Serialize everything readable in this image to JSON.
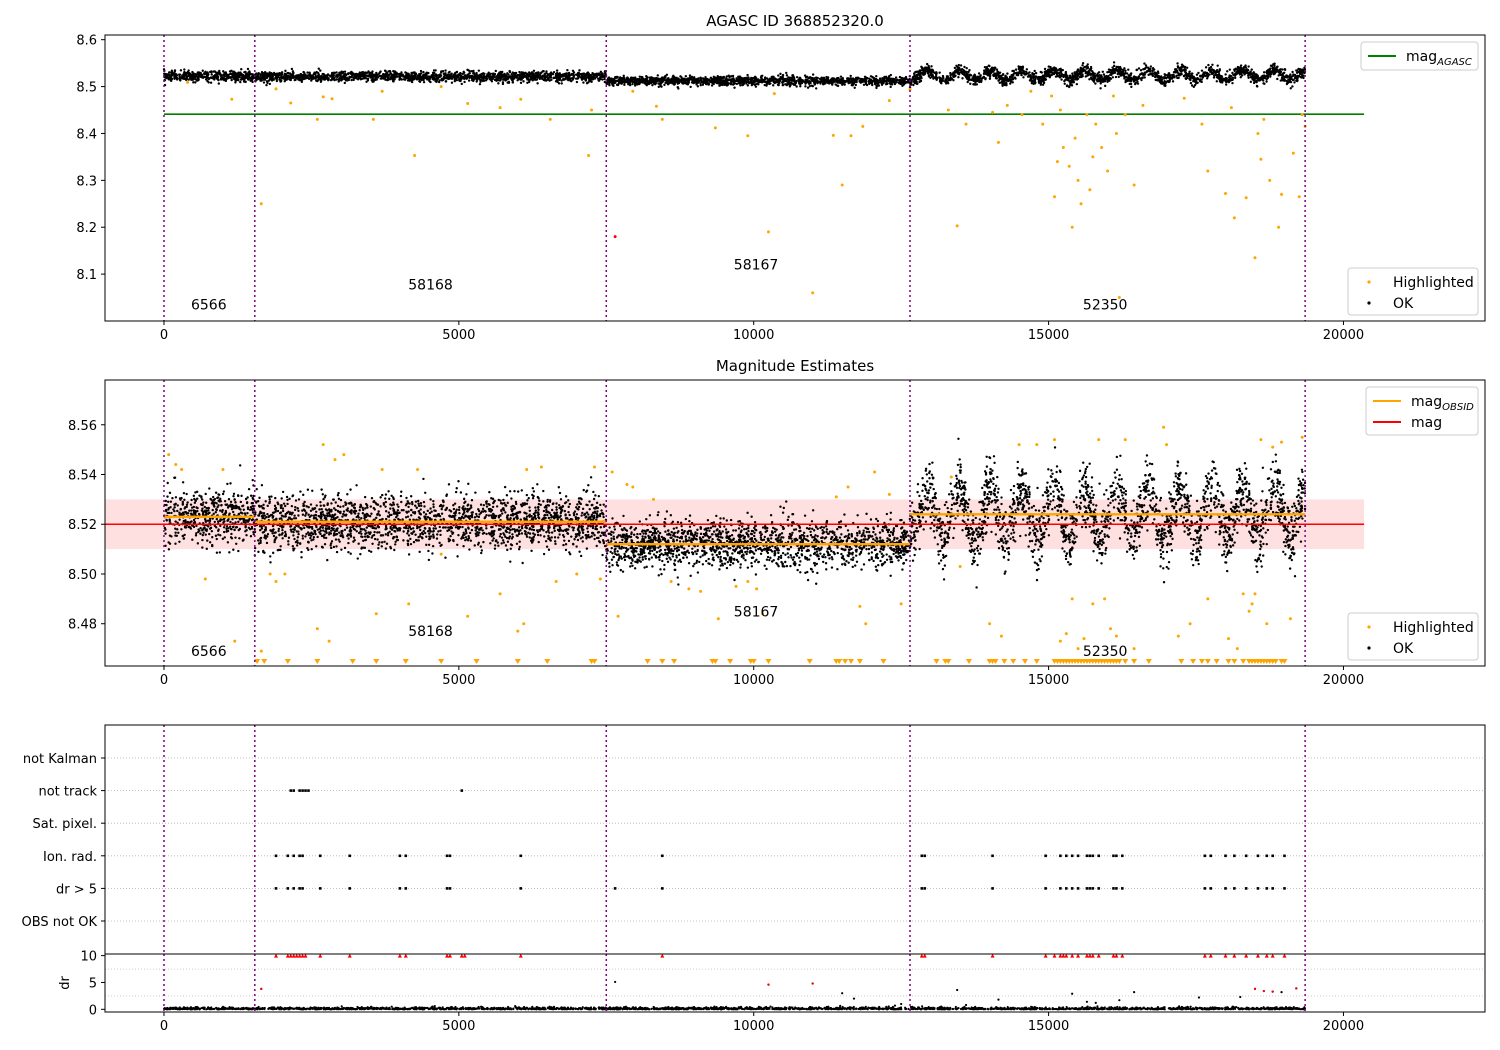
{
  "chart_data": [
    {
      "type": "scatter",
      "title": "AGASC ID 368852320.0",
      "xlim": [
        -1000,
        22400
      ],
      "ylim": [
        8.0,
        8.61
      ],
      "xticks": [
        0,
        5000,
        10000,
        15000,
        20000
      ],
      "yticks": [
        8.1,
        8.2,
        8.3,
        8.4,
        8.5,
        8.6
      ],
      "ytick_labels": [
        "8.1",
        "8.2",
        "8.3",
        "8.4",
        "8.5",
        "8.6"
      ],
      "obsid_boundaries": [
        0,
        1540,
        7500,
        12650,
        19350
      ],
      "obsid_labels": [
        {
          "text": "6566",
          "x": 760,
          "y": 8.025
        },
        {
          "text": "58168",
          "x": 4520,
          "y": 8.067
        },
        {
          "text": "58167",
          "x": 10040,
          "y": 8.11
        },
        {
          "text": "52350",
          "x": 15960,
          "y": 8.025
        }
      ],
      "mag_agasc": {
        "value": 8.441,
        "x_range": [
          0,
          20350
        ]
      },
      "ok_bands": [
        {
          "x0": 0,
          "x1": 1540,
          "mean": 8.522,
          "spread": 0.009,
          "osc": 0.0
        },
        {
          "x0": 1540,
          "x1": 7500,
          "mean": 8.521,
          "spread": 0.009,
          "osc": 0.0
        },
        {
          "x0": 7500,
          "x1": 12650,
          "mean": 8.512,
          "spread": 0.008,
          "osc": 0.0
        },
        {
          "x0": 12650,
          "x1": 19350,
          "mean": 8.524,
          "spread": 0.01,
          "osc": 0.012
        }
      ],
      "highlighted_points": [
        [
          400,
          8.509
        ],
        [
          1150,
          8.473
        ],
        [
          1650,
          8.25
        ],
        [
          1900,
          8.495
        ],
        [
          2150,
          8.465
        ],
        [
          2600,
          8.43
        ],
        [
          2700,
          8.478
        ],
        [
          2850,
          8.474
        ],
        [
          3550,
          8.43
        ],
        [
          3700,
          8.49
        ],
        [
          4250,
          8.353
        ],
        [
          4700,
          8.5
        ],
        [
          5150,
          8.464
        ],
        [
          5700,
          8.455
        ],
        [
          6050,
          8.473
        ],
        [
          6550,
          8.43
        ],
        [
          7200,
          8.353
        ],
        [
          7250,
          8.45
        ],
        [
          7950,
          8.49
        ],
        [
          8350,
          8.458
        ],
        [
          8450,
          8.43
        ],
        [
          9350,
          8.412
        ],
        [
          9900,
          8.395
        ],
        [
          10250,
          8.19
        ],
        [
          10350,
          8.485
        ],
        [
          11000,
          8.06
        ],
        [
          11350,
          8.396
        ],
        [
          11500,
          8.29
        ],
        [
          11650,
          8.395
        ],
        [
          11850,
          8.415
        ],
        [
          12300,
          8.47
        ],
        [
          13300,
          8.45
        ],
        [
          13450,
          8.203
        ],
        [
          13600,
          8.42
        ],
        [
          14050,
          8.445
        ],
        [
          14150,
          8.381
        ],
        [
          14300,
          8.46
        ],
        [
          14550,
          8.44
        ],
        [
          14900,
          8.42
        ],
        [
          15100,
          8.265
        ],
        [
          15150,
          8.34
        ],
        [
          15200,
          8.45
        ],
        [
          15250,
          8.37
        ],
        [
          15350,
          8.33
        ],
        [
          15400,
          8.2
        ],
        [
          15450,
          8.39
        ],
        [
          15500,
          8.3
        ],
        [
          15550,
          8.25
        ],
        [
          15650,
          8.44
        ],
        [
          15700,
          8.28
        ],
        [
          15750,
          8.35
        ],
        [
          15800,
          8.42
        ],
        [
          15900,
          8.37
        ],
        [
          16000,
          8.32
        ],
        [
          16100,
          8.48
        ],
        [
          16150,
          8.4
        ],
        [
          16200,
          8.05
        ],
        [
          16300,
          8.44
        ],
        [
          16450,
          8.29
        ],
        [
          16600,
          8.46
        ],
        [
          17300,
          8.475
        ],
        [
          17600,
          8.42
        ],
        [
          17700,
          8.32
        ],
        [
          18000,
          8.272
        ],
        [
          18100,
          8.455
        ],
        [
          18150,
          8.22
        ],
        [
          18350,
          8.263
        ],
        [
          18500,
          8.135
        ],
        [
          18600,
          8.345
        ],
        [
          18750,
          8.3
        ],
        [
          18900,
          8.2
        ],
        [
          18950,
          8.27
        ],
        [
          19150,
          8.358
        ],
        [
          19250,
          8.265
        ],
        [
          19300,
          8.44
        ],
        [
          19350,
          8.415
        ],
        [
          18550,
          8.4
        ],
        [
          18650,
          8.43
        ],
        [
          14700,
          8.49
        ],
        [
          15050,
          8.48
        ],
        [
          12650,
          8.494
        ]
      ],
      "ok_special_points": [
        [
          7650,
          8.18
        ]
      ],
      "legends": [
        {
          "entries": [
            {
              "label": "mag",
              "subscript": "AGASC",
              "color": "#008000",
              "kind": "line"
            }
          ],
          "loc": "upper right"
        },
        {
          "entries": [
            {
              "label": "Highlighted",
              "color": "#FFA500",
              "kind": "dot"
            },
            {
              "label": "OK",
              "color": "#000000",
              "kind": "dot"
            }
          ],
          "loc": "lower right"
        }
      ]
    },
    {
      "type": "scatter",
      "title": "Magnitude Estimates",
      "xlim": [
        -1000,
        22400
      ],
      "ylim": [
        8.463,
        8.578
      ],
      "xticks": [
        0,
        5000,
        10000,
        15000,
        20000
      ],
      "yticks": [
        8.48,
        8.5,
        8.52,
        8.54,
        8.56
      ],
      "ytick_labels": [
        "8.48",
        "8.50",
        "8.52",
        "8.54",
        "8.56"
      ],
      "obsid_boundaries": [
        0,
        1540,
        7500,
        12650,
        19350
      ],
      "obsid_labels": [
        {
          "text": "6566",
          "x": 760,
          "y": 8.467
        },
        {
          "text": "58168",
          "x": 4520,
          "y": 8.475
        },
        {
          "text": "58167",
          "x": 10040,
          "y": 8.483
        },
        {
          "text": "52350",
          "x": 15960,
          "y": 8.467
        }
      ],
      "mag": {
        "value": 8.52,
        "band": [
          8.51,
          8.53
        ],
        "x_range": [
          -1000,
          20350
        ]
      },
      "mag_obsid": [
        {
          "x0": 0,
          "x1": 1540,
          "value": 8.523
        },
        {
          "x0": 1540,
          "x1": 7500,
          "value": 8.521
        },
        {
          "x0": 7500,
          "x1": 12650,
          "value": 8.512
        },
        {
          "x0": 12650,
          "x1": 19350,
          "value": 8.524
        }
      ],
      "ok_bands": [
        {
          "x0": 0,
          "x1": 1540,
          "mean": 8.523,
          "spread": 0.009,
          "osc": 0.0
        },
        {
          "x0": 1540,
          "x1": 7500,
          "mean": 8.521,
          "spread": 0.009,
          "osc": 0.0
        },
        {
          "x0": 7500,
          "x1": 12650,
          "mean": 8.512,
          "spread": 0.008,
          "osc": 0.0
        },
        {
          "x0": 12650,
          "x1": 19350,
          "mean": 8.524,
          "spread": 0.01,
          "osc": 0.012
        }
      ],
      "highlighted_points": [
        [
          80,
          8.548
        ],
        [
          200,
          8.544
        ],
        [
          300,
          8.542
        ],
        [
          700,
          8.498
        ],
        [
          1000,
          8.542
        ],
        [
          1200,
          8.473
        ],
        [
          1650,
          8.469
        ],
        [
          1800,
          8.5
        ],
        [
          1900,
          8.497
        ],
        [
          2050,
          8.5
        ],
        [
          2600,
          8.478
        ],
        [
          2700,
          8.552
        ],
        [
          2800,
          8.473
        ],
        [
          2900,
          8.546
        ],
        [
          3050,
          8.548
        ],
        [
          3600,
          8.484
        ],
        [
          3700,
          8.542
        ],
        [
          4150,
          8.488
        ],
        [
          4300,
          8.542
        ],
        [
          4700,
          8.508
        ],
        [
          5150,
          8.483
        ],
        [
          5700,
          8.492
        ],
        [
          6000,
          8.477
        ],
        [
          6100,
          8.48
        ],
        [
          6150,
          8.542
        ],
        [
          6400,
          8.543
        ],
        [
          6650,
          8.497
        ],
        [
          7000,
          8.5
        ],
        [
          7300,
          8.543
        ],
        [
          7400,
          8.498
        ],
        [
          7600,
          8.541
        ],
        [
          7700,
          8.483
        ],
        [
          7850,
          8.536
        ],
        [
          7950,
          8.535
        ],
        [
          8300,
          8.53
        ],
        [
          8600,
          8.497
        ],
        [
          8900,
          8.494
        ],
        [
          9100,
          8.493
        ],
        [
          9400,
          8.482
        ],
        [
          9700,
          8.495
        ],
        [
          9900,
          8.497
        ],
        [
          10050,
          8.494
        ],
        [
          10150,
          8.484
        ],
        [
          11400,
          8.531
        ],
        [
          11600,
          8.535
        ],
        [
          11800,
          8.487
        ],
        [
          11900,
          8.48
        ],
        [
          12050,
          8.541
        ],
        [
          12300,
          8.532
        ],
        [
          12500,
          8.488
        ],
        [
          13350,
          8.539
        ],
        [
          13500,
          8.503
        ],
        [
          14000,
          8.48
        ],
        [
          14200,
          8.475
        ],
        [
          14500,
          8.552
        ],
        [
          14800,
          8.552
        ],
        [
          15100,
          8.554
        ],
        [
          15200,
          8.473
        ],
        [
          15300,
          8.476
        ],
        [
          15400,
          8.49
        ],
        [
          15500,
          8.47
        ],
        [
          15600,
          8.474
        ],
        [
          15750,
          8.488
        ],
        [
          15850,
          8.554
        ],
        [
          15950,
          8.49
        ],
        [
          16050,
          8.478
        ],
        [
          16150,
          8.475
        ],
        [
          16300,
          8.554
        ],
        [
          16450,
          8.47
        ],
        [
          16950,
          8.559
        ],
        [
          17000,
          8.552
        ],
        [
          17200,
          8.475
        ],
        [
          17400,
          8.48
        ],
        [
          17700,
          8.49
        ],
        [
          18050,
          8.474
        ],
        [
          18200,
          8.47
        ],
        [
          18300,
          8.492
        ],
        [
          18400,
          8.485
        ],
        [
          18450,
          8.488
        ],
        [
          18500,
          8.492
        ],
        [
          18600,
          8.554
        ],
        [
          18700,
          8.48
        ],
        [
          18800,
          8.551
        ],
        [
          18950,
          8.553
        ],
        [
          19100,
          8.482
        ],
        [
          19300,
          8.555
        ]
      ],
      "lower_limit_markers": [
        1580,
        1700,
        2100,
        2600,
        3200,
        3600,
        4100,
        4700,
        5300,
        6000,
        6500,
        7250,
        7300,
        8200,
        8450,
        8650,
        9300,
        9350,
        9600,
        9950,
        10000,
        10250,
        10950,
        11400,
        11450,
        11550,
        11650,
        11800,
        12200,
        13100,
        13250,
        13300,
        13650,
        14000,
        14050,
        14100,
        14250,
        14400,
        14600,
        14800,
        15100,
        15150,
        15200,
        15250,
        15300,
        15350,
        15400,
        15450,
        15500,
        15550,
        15600,
        15650,
        15700,
        15750,
        15800,
        15850,
        15900,
        15950,
        16000,
        16050,
        16100,
        16150,
        16200,
        16300,
        16450,
        16700,
        17250,
        17450,
        17600,
        17700,
        17850,
        18050,
        18150,
        18300,
        18400,
        18450,
        18500,
        18550,
        18600,
        18650,
        18700,
        18750,
        18800,
        18850,
        18950,
        19000
      ],
      "legends": [
        {
          "entries": [
            {
              "label": "mag",
              "subscript": "OBSID",
              "color": "#FFA500",
              "kind": "line"
            },
            {
              "label": "mag",
              "subscript": "",
              "color": "#FF0000",
              "kind": "line"
            }
          ],
          "loc": "upper right"
        },
        {
          "entries": [
            {
              "label": "Highlighted",
              "color": "#FFA500",
              "kind": "dot"
            },
            {
              "label": "OK",
              "color": "#000000",
              "kind": "dot"
            }
          ],
          "loc": "lower right"
        }
      ]
    },
    {
      "type": "scatter",
      "title": "",
      "xlim": [
        -1000,
        22400
      ],
      "categories": [
        "not Kalman",
        "not track",
        "Sat. pixel.",
        "Ion. rad.",
        "dr > 5",
        "OBS not OK"
      ],
      "obsid_boundaries": [
        0,
        1540,
        7500,
        12650,
        19350
      ],
      "flag_points": {
        "not track": [
          2150,
          2200,
          2300,
          2350,
          2400,
          2450,
          5050
        ],
        "Ion. rad.": [
          1900,
          2100,
          2200,
          2300,
          2350,
          2650,
          3150,
          4000,
          4100,
          4800,
          4850,
          6050,
          8450,
          12850,
          12900,
          14050,
          14950,
          15200,
          15300,
          15400,
          15500,
          15650,
          15700,
          15750,
          15850,
          16100,
          16150,
          16250,
          17650,
          17750,
          18000,
          18150,
          18350,
          18550,
          18700,
          18800,
          19000
        ],
        "dr > 5": [
          1900,
          2100,
          2200,
          2300,
          2350,
          2650,
          3150,
          4000,
          4100,
          4800,
          4850,
          6050,
          7650,
          8450,
          12850,
          12900,
          14050,
          14950,
          15200,
          15300,
          15400,
          15500,
          15650,
          15700,
          15750,
          15850,
          16100,
          16150,
          16250,
          17650,
          17750,
          18000,
          18150,
          18350,
          18550,
          18700,
          18800,
          19000
        ]
      }
    },
    {
      "type": "scatter",
      "title": "",
      "xlim": [
        -1000,
        22400
      ],
      "ylim": [
        -0.5,
        10.3
      ],
      "ylabel": "dr",
      "xticks": [
        0,
        5000,
        10000,
        15000,
        20000
      ],
      "yticks": [
        0,
        5,
        10
      ],
      "ytick_labels": [
        "0",
        "5",
        "10"
      ],
      "obsid_boundaries": [
        0,
        1540,
        7500,
        12650,
        19350
      ],
      "clipped_x": [
        1900,
        2100,
        2150,
        2200,
        2250,
        2300,
        2350,
        2400,
        2650,
        3150,
        4000,
        4100,
        4800,
        4850,
        5050,
        5100,
        6050,
        8450,
        12850,
        12900,
        14050,
        14950,
        15100,
        15200,
        15250,
        15300,
        15400,
        15500,
        15650,
        15700,
        15750,
        15850,
        16100,
        16150,
        16250,
        17650,
        17750,
        18000,
        18150,
        18350,
        18550,
        18700,
        18800,
        19000
      ],
      "large_dr_points": [
        [
          1650,
          3.8
        ],
        [
          7650,
          5.1
        ],
        [
          10250,
          4.6
        ],
        [
          11000,
          4.8
        ],
        [
          11500,
          3.0
        ],
        [
          11700,
          2.0
        ],
        [
          13450,
          3.6
        ],
        [
          14150,
          1.8
        ],
        [
          15400,
          2.9
        ],
        [
          15650,
          1.4
        ],
        [
          16200,
          1.7
        ],
        [
          16450,
          3.2
        ],
        [
          17550,
          2.2
        ],
        [
          18250,
          2.3
        ],
        [
          18500,
          3.8
        ],
        [
          18650,
          3.4
        ],
        [
          18800,
          3.3
        ],
        [
          18950,
          3.2
        ],
        [
          19200,
          3.9
        ],
        [
          15800,
          1.2
        ],
        [
          13600,
          0.8
        ],
        [
          12500,
          1.0
        ]
      ]
    }
  ]
}
